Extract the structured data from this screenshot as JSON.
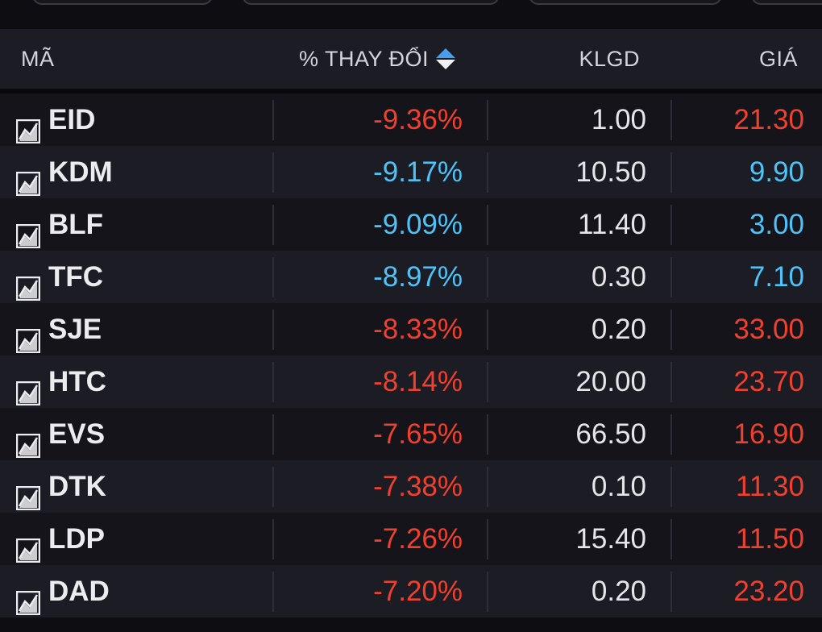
{
  "colors": {
    "down_red": "#f0402e",
    "floor_blue": "#4fc3f7",
    "neutral_white": "#e6e6ea",
    "sort_active": "#4a9ef0"
  },
  "header": {
    "col_symbol": "MÃ",
    "col_change": "% THAY ĐỔI",
    "col_volume": "KLGD",
    "col_price": "GIÁ",
    "sort_icon": "sort-up-down-icon"
  },
  "rows": [
    {
      "symbol": "EID",
      "change": "-9.36%",
      "volume": "1.00",
      "price": "21.30",
      "color": "#f0402e"
    },
    {
      "symbol": "KDM",
      "change": "-9.17%",
      "volume": "10.50",
      "price": "9.90",
      "color": "#4fc3f7"
    },
    {
      "symbol": "BLF",
      "change": "-9.09%",
      "volume": "11.40",
      "price": "3.00",
      "color": "#4fc3f7"
    },
    {
      "symbol": "TFC",
      "change": "-8.97%",
      "volume": "0.30",
      "price": "7.10",
      "color": "#4fc3f7"
    },
    {
      "symbol": "SJE",
      "change": "-8.33%",
      "volume": "0.20",
      "price": "33.00",
      "color": "#f0402e"
    },
    {
      "symbol": "HTC",
      "change": "-8.14%",
      "volume": "20.00",
      "price": "23.70",
      "color": "#f0402e"
    },
    {
      "symbol": "EVS",
      "change": "-7.65%",
      "volume": "66.50",
      "price": "16.90",
      "color": "#f0402e"
    },
    {
      "symbol": "DTK",
      "change": "-7.38%",
      "volume": "0.10",
      "price": "11.30",
      "color": "#f0402e"
    },
    {
      "symbol": "LDP",
      "change": "-7.26%",
      "volume": "15.40",
      "price": "11.50",
      "color": "#f0402e"
    },
    {
      "symbol": "DAD",
      "change": "-7.20%",
      "volume": "0.20",
      "price": "23.20",
      "color": "#f0402e"
    }
  ]
}
